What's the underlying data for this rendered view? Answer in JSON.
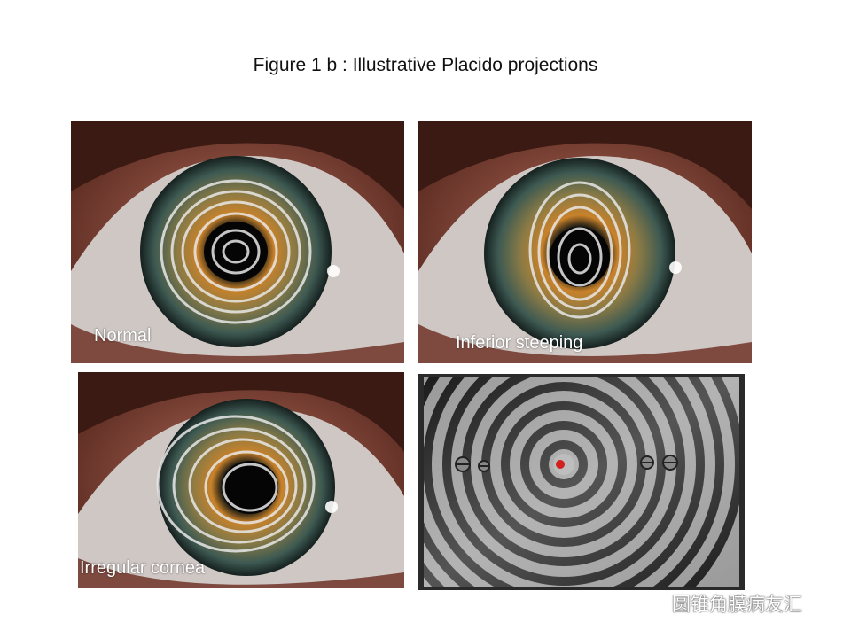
{
  "title": "Figure 1 b : Illustrative Placido projections",
  "panels": [
    {
      "label": "Normal"
    },
    {
      "label": "Inferior steeping"
    },
    {
      "label": "Irregular cornea"
    },
    {
      "label": ""
    }
  ],
  "watermark": {
    "text": "圆锥角膜病友汇",
    "icon": "wechat-icon"
  },
  "colors": {
    "iris_inner": "#c9822a",
    "iris_outer": "#3e5a52",
    "sclera": "#d9d0cc",
    "skin": "#7a3a2c"
  }
}
